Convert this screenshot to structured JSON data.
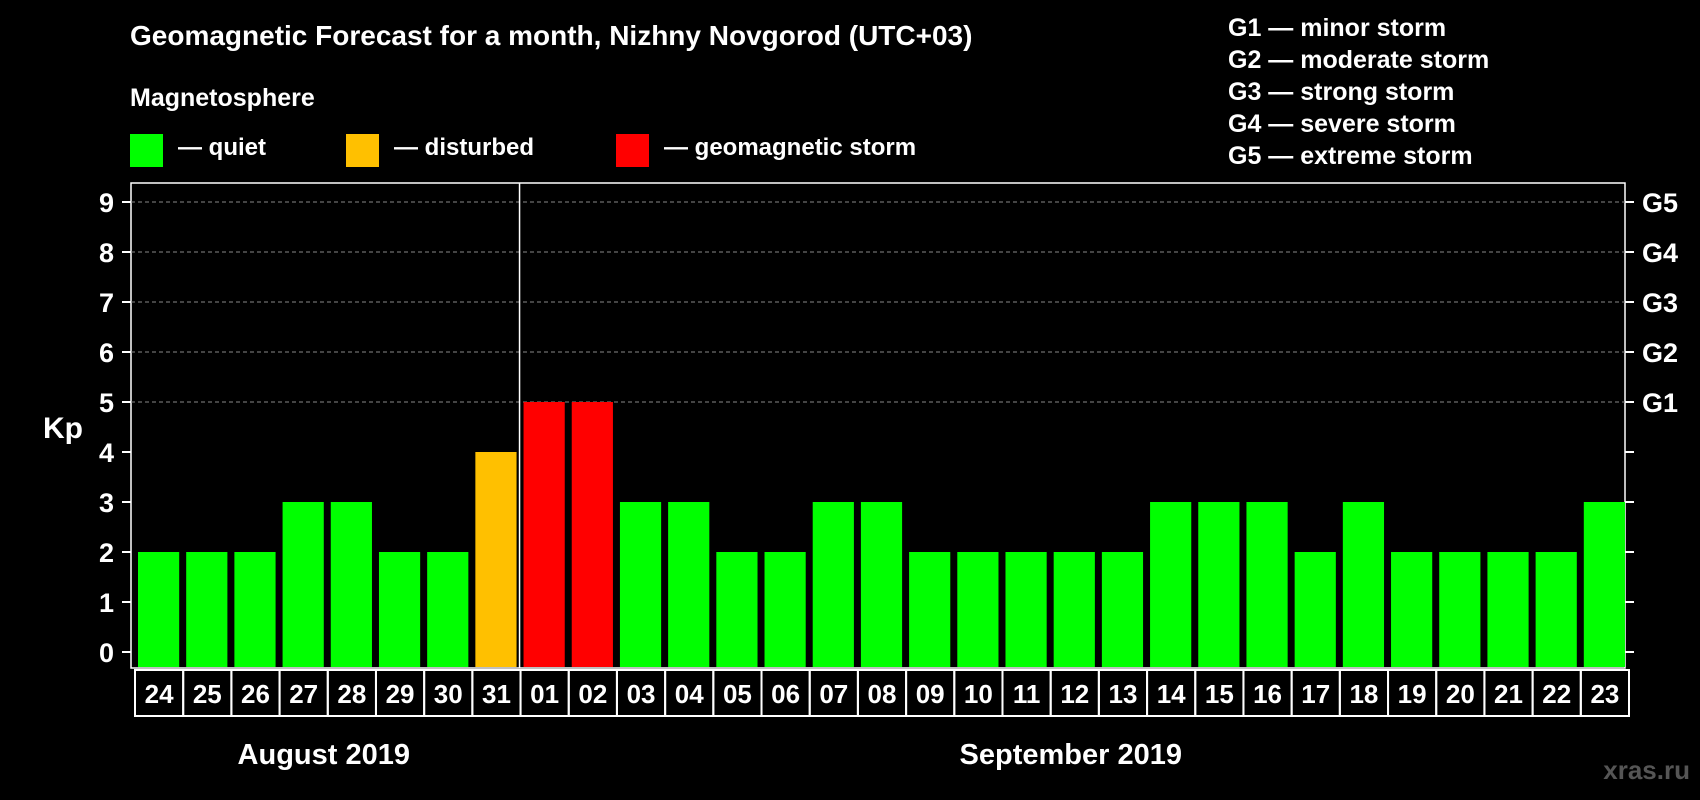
{
  "title": "Geomagnetic Forecast for a month, Nizhny Novgorod (UTC+03)",
  "legend": {
    "heading": "Magnetosphere",
    "items": [
      {
        "label": "— quiet",
        "color": "#00ff00"
      },
      {
        "label": "— disturbed",
        "color": "#ffc000"
      },
      {
        "label": "— geomagnetic storm",
        "color": "#ff0000"
      }
    ]
  },
  "storm_scale": [
    {
      "label": "G1 — minor storm"
    },
    {
      "label": "G2 — moderate storm"
    },
    {
      "label": "G3 — strong storm"
    },
    {
      "label": "G4 — severe storm"
    },
    {
      "label": "G5 — extreme storm"
    }
  ],
  "brand": "xras.ru",
  "chart_data": {
    "type": "bar",
    "title": "Geomagnetic Forecast for a month, Nizhny Novgorod (UTC+03)",
    "ylabel": "Kp",
    "ylim": [
      0,
      9
    ],
    "yticks": [
      "0",
      "1",
      "2",
      "3",
      "4",
      "5",
      "6",
      "7",
      "8",
      "9"
    ],
    "right_axis_labels": [
      {
        "kp": 5,
        "label": "G1"
      },
      {
        "kp": 6,
        "label": "G2"
      },
      {
        "kp": 7,
        "label": "G3"
      },
      {
        "kp": 8,
        "label": "G4"
      },
      {
        "kp": 9,
        "label": "G5"
      }
    ],
    "categories": [
      "24",
      "25",
      "26",
      "27",
      "28",
      "29",
      "30",
      "31",
      "01",
      "02",
      "03",
      "04",
      "05",
      "06",
      "07",
      "08",
      "09",
      "10",
      "11",
      "12",
      "13",
      "14",
      "15",
      "16",
      "17",
      "18",
      "19",
      "20",
      "21",
      "22",
      "23"
    ],
    "values": [
      2,
      2,
      2,
      3,
      3,
      2,
      2,
      4,
      5,
      5,
      3,
      3,
      2,
      2,
      3,
      3,
      2,
      2,
      2,
      2,
      2,
      3,
      3,
      3,
      2,
      3,
      2,
      2,
      2,
      2,
      3
    ],
    "month_labels": [
      {
        "label": "August 2019",
        "first_index": 0,
        "last_index": 7
      },
      {
        "label": "September 2019",
        "first_index": 8,
        "last_index": 30
      }
    ],
    "month_divider_after_index": 7,
    "color_thresholds": {
      "quiet_max": 3,
      "disturbed": 4,
      "storm_min": 5
    },
    "colors": {
      "quiet": "#00ff00",
      "disturbed": "#ffc000",
      "storm": "#ff0000"
    },
    "grid": "dashed horizontal at Kp 5–9"
  }
}
